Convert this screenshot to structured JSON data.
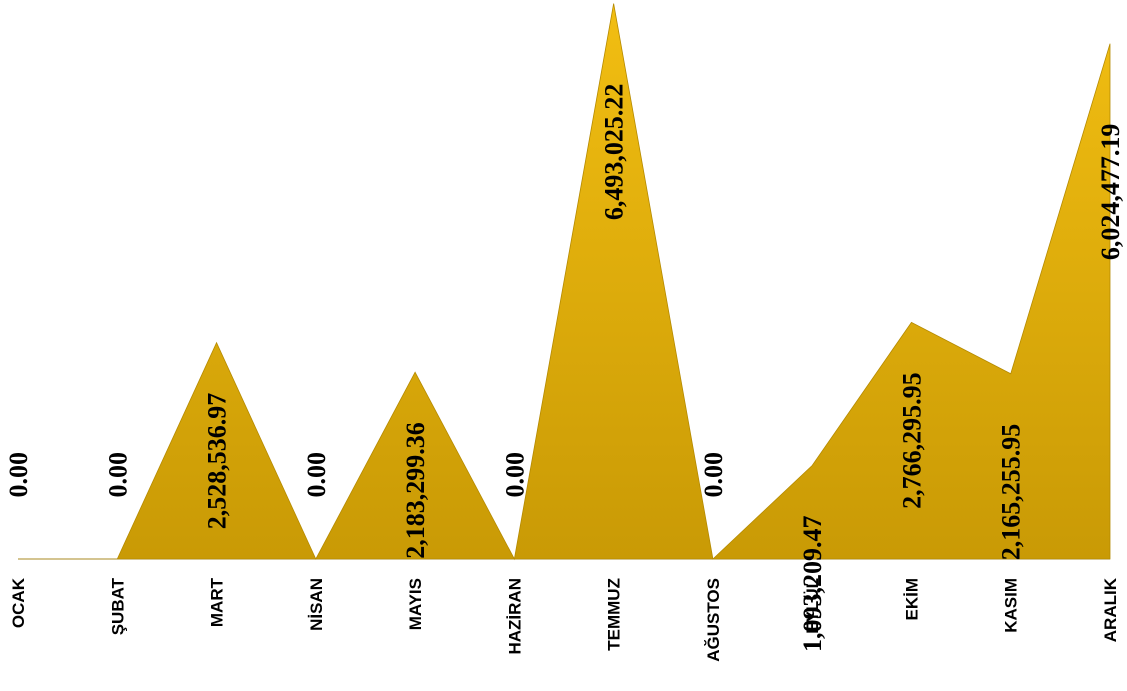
{
  "chart_data": {
    "type": "area",
    "categories": [
      "OCAK",
      "ŞUBAT",
      "MART",
      "NİSAN",
      "MAYIS",
      "HAZİRAN",
      "TEMMUZ",
      "AĞUSTOS",
      "EYLÜL",
      "EKİM",
      "KASIM",
      "ARALIK"
    ],
    "values": [
      0.0,
      0.0,
      2528536.97,
      0.0,
      2183299.36,
      0.0,
      6493025.22,
      0.0,
      1093209.47,
      2766295.95,
      2165255.95,
      6024477.19
    ],
    "data_labels": [
      "0.00",
      "0.00",
      "2,528,536.97",
      "0.00",
      "2,183,299.36",
      "0.00",
      "6,493,025.22",
      "0.00",
      "1,093,209.47",
      "2,766,295.95",
      "2,165,255.95",
      "6,024,477.19"
    ],
    "fill_color": "#F2BE12",
    "fill_color_dark": "#C99A05",
    "title": "",
    "xlabel": "",
    "ylabel": "",
    "ylim": [
      0,
      6500000
    ],
    "grid": false,
    "legend": "none"
  }
}
